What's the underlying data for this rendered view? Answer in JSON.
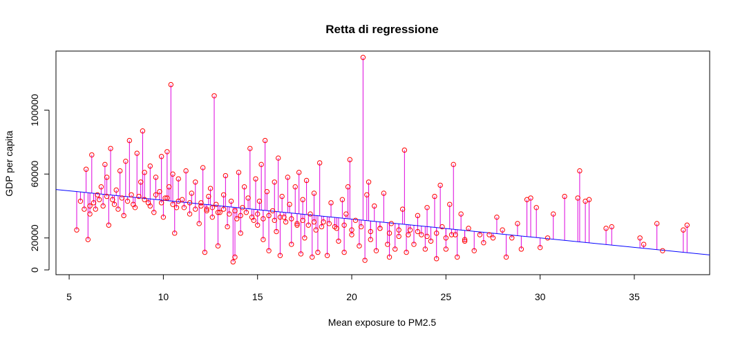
{
  "chart_data": {
    "type": "scatter",
    "title": "Retta di regressione",
    "xlabel": "Mean exposure to PM2.5",
    "ylabel": "GDP per capita",
    "xlim": [
      4.3,
      39.0
    ],
    "ylim": [
      -3000,
      137000
    ],
    "xticks": [
      5,
      10,
      15,
      20,
      25,
      30,
      35
    ],
    "yticks": [
      0,
      20000,
      60000,
      100000
    ],
    "grid": false,
    "regression_line": {
      "intercept": 55400,
      "slope": -1180
    },
    "point_color": "#ff0000",
    "segment_color": "#dd00dd",
    "line_color": "#0000ff",
    "points": [
      [
        5.4,
        25000
      ],
      [
        5.6,
        43000
      ],
      [
        5.8,
        38000
      ],
      [
        5.9,
        63000
      ],
      [
        6.0,
        19000
      ],
      [
        6.1,
        35000
      ],
      [
        6.2,
        72000
      ],
      [
        6.3,
        42000
      ],
      [
        6.5,
        47000
      ],
      [
        6.7,
        52000
      ],
      [
        6.9,
        66000
      ],
      [
        7.0,
        58000
      ],
      [
        7.1,
        28000
      ],
      [
        7.2,
        76000
      ],
      [
        7.3,
        44000
      ],
      [
        7.5,
        50000
      ],
      [
        7.7,
        62000
      ],
      [
        7.9,
        34000
      ],
      [
        8.0,
        68000
      ],
      [
        8.2,
        81000
      ],
      [
        8.3,
        47000
      ],
      [
        8.5,
        39000
      ],
      [
        8.6,
        73000
      ],
      [
        8.8,
        55000
      ],
      [
        8.9,
        87000
      ],
      [
        9.0,
        61000
      ],
      [
        9.2,
        42000
      ],
      [
        9.3,
        65000
      ],
      [
        9.5,
        36000
      ],
      [
        9.6,
        58000
      ],
      [
        9.8,
        49000
      ],
      [
        9.9,
        71000
      ],
      [
        10.0,
        33000
      ],
      [
        10.1,
        45000
      ],
      [
        10.2,
        74000
      ],
      [
        10.3,
        52000
      ],
      [
        10.4,
        116000
      ],
      [
        10.5,
        60000
      ],
      [
        10.6,
        23000
      ],
      [
        10.7,
        39000
      ],
      [
        10.8,
        57000
      ],
      [
        11.0,
        44000
      ],
      [
        11.2,
        62000
      ],
      [
        11.4,
        35000
      ],
      [
        11.5,
        48000
      ],
      [
        11.7,
        55000
      ],
      [
        11.9,
        29000
      ],
      [
        12.0,
        42000
      ],
      [
        12.1,
        64000
      ],
      [
        12.2,
        11000
      ],
      [
        12.3,
        38000
      ],
      [
        12.4,
        46000
      ],
      [
        12.5,
        51000
      ],
      [
        12.6,
        33000
      ],
      [
        12.7,
        109000
      ],
      [
        12.8,
        41000
      ],
      [
        12.9,
        15000
      ],
      [
        13.0,
        36000
      ],
      [
        13.2,
        47000
      ],
      [
        13.3,
        59000
      ],
      [
        13.4,
        27000
      ],
      [
        13.6,
        43000
      ],
      [
        13.7,
        5000
      ],
      [
        13.8,
        8000
      ],
      [
        13.9,
        32000
      ],
      [
        14.0,
        61000
      ],
      [
        14.1,
        23000
      ],
      [
        14.2,
        39000
      ],
      [
        14.3,
        52000
      ],
      [
        14.5,
        45000
      ],
      [
        14.6,
        76000
      ],
      [
        14.8,
        31000
      ],
      [
        14.9,
        57000
      ],
      [
        15.0,
        28000
      ],
      [
        15.1,
        43000
      ],
      [
        15.2,
        66000
      ],
      [
        15.3,
        19000
      ],
      [
        15.4,
        81000
      ],
      [
        15.5,
        49000
      ],
      [
        15.6,
        12000
      ],
      [
        15.8,
        37000
      ],
      [
        15.9,
        55000
      ],
      [
        16.0,
        24000
      ],
      [
        16.1,
        70000
      ],
      [
        16.2,
        9000
      ],
      [
        16.3,
        46000
      ],
      [
        16.4,
        33000
      ],
      [
        16.6,
        58000
      ],
      [
        16.7,
        41000
      ],
      [
        16.8,
        16000
      ],
      [
        17.0,
        52000
      ],
      [
        17.1,
        28000
      ],
      [
        17.2,
        61000
      ],
      [
        17.3,
        10000
      ],
      [
        17.4,
        44000
      ],
      [
        17.5,
        20000
      ],
      [
        17.6,
        56000
      ],
      [
        17.8,
        35000
      ],
      [
        17.9,
        8000
      ],
      [
        18.0,
        48000
      ],
      [
        18.1,
        25000
      ],
      [
        18.2,
        11000
      ],
      [
        18.3,
        67000
      ],
      [
        18.5,
        30000
      ],
      [
        18.7,
        9000
      ],
      [
        18.9,
        42000
      ],
      [
        19.1,
        27000
      ],
      [
        19.3,
        18000
      ],
      [
        19.5,
        44000
      ],
      [
        19.6,
        11000
      ],
      [
        19.7,
        35000
      ],
      [
        19.8,
        52000
      ],
      [
        19.9,
        69000
      ],
      [
        20.0,
        22000
      ],
      [
        20.2,
        31000
      ],
      [
        20.4,
        15000
      ],
      [
        20.6,
        133000
      ],
      [
        20.7,
        6000
      ],
      [
        20.8,
        47000
      ],
      [
        20.9,
        55000
      ],
      [
        21.0,
        19000
      ],
      [
        21.2,
        40000
      ],
      [
        21.3,
        12000
      ],
      [
        21.5,
        26000
      ],
      [
        21.7,
        48000
      ],
      [
        21.9,
        16000
      ],
      [
        22.0,
        8000
      ],
      [
        22.1,
        29000
      ],
      [
        22.3,
        13000
      ],
      [
        22.5,
        21000
      ],
      [
        22.7,
        38000
      ],
      [
        22.8,
        75000
      ],
      [
        22.9,
        11000
      ],
      [
        23.1,
        25000
      ],
      [
        23.3,
        16000
      ],
      [
        23.5,
        34000
      ],
      [
        23.7,
        22000
      ],
      [
        23.9,
        13000
      ],
      [
        24.0,
        39000
      ],
      [
        24.2,
        18000
      ],
      [
        24.4,
        46000
      ],
      [
        24.5,
        7000
      ],
      [
        24.7,
        53000
      ],
      [
        24.8,
        27000
      ],
      [
        25.0,
        13000
      ],
      [
        25.2,
        41000
      ],
      [
        25.3,
        22000
      ],
      [
        25.4,
        66000
      ],
      [
        25.6,
        8000
      ],
      [
        25.8,
        35000
      ],
      [
        26.0,
        18000
      ],
      [
        26.2,
        26000
      ],
      [
        26.5,
        12000
      ],
      [
        26.8,
        22000
      ],
      [
        27.0,
        17000
      ],
      [
        27.3,
        22000
      ],
      [
        27.7,
        33000
      ],
      [
        28.0,
        25000
      ],
      [
        28.2,
        8000
      ],
      [
        28.5,
        20000
      ],
      [
        28.8,
        29000
      ],
      [
        29.0,
        13000
      ],
      [
        29.3,
        44000
      ],
      [
        29.5,
        45000
      ],
      [
        29.8,
        39000
      ],
      [
        30.0,
        14000
      ],
      [
        30.4,
        20000
      ],
      [
        30.7,
        35000
      ],
      [
        31.3,
        46000
      ],
      [
        32.0,
        45000
      ],
      [
        32.1,
        62000
      ],
      [
        32.4,
        43000
      ],
      [
        32.6,
        44000
      ],
      [
        33.5,
        26000
      ],
      [
        33.8,
        27000
      ],
      [
        35.3,
        20000
      ],
      [
        35.5,
        16000
      ],
      [
        36.2,
        29000
      ],
      [
        36.5,
        12000
      ],
      [
        37.6,
        25000
      ],
      [
        37.8,
        28000
      ],
      [
        6.1,
        40000
      ],
      [
        6.4,
        38000
      ],
      [
        6.6,
        44000
      ],
      [
        6.8,
        40000
      ],
      [
        7.0,
        46000
      ],
      [
        7.4,
        41000
      ],
      [
        7.6,
        38000
      ],
      [
        7.8,
        45000
      ],
      [
        8.1,
        43000
      ],
      [
        8.4,
        41000
      ],
      [
        8.7,
        46000
      ],
      [
        9.0,
        44000
      ],
      [
        9.3,
        40000
      ],
      [
        9.6,
        47000
      ],
      [
        9.9,
        42000
      ],
      [
        10.2,
        45000
      ],
      [
        10.5,
        41000
      ],
      [
        10.8,
        43000
      ],
      [
        11.1,
        39000
      ],
      [
        11.4,
        42000
      ],
      [
        11.7,
        38000
      ],
      [
        12.0,
        40000
      ],
      [
        12.3,
        37000
      ],
      [
        12.6,
        39000
      ],
      [
        12.9,
        36000
      ],
      [
        13.2,
        38000
      ],
      [
        13.5,
        35000
      ],
      [
        13.8,
        37000
      ],
      [
        14.1,
        34000
      ],
      [
        14.4,
        36000
      ],
      [
        14.7,
        33000
      ],
      [
        15.0,
        35000
      ],
      [
        15.3,
        32000
      ],
      [
        15.6,
        34000
      ],
      [
        15.9,
        31000
      ],
      [
        16.2,
        33000
      ],
      [
        16.5,
        30000
      ],
      [
        16.8,
        32000
      ],
      [
        17.1,
        29000
      ],
      [
        17.4,
        31000
      ],
      [
        17.7,
        28000
      ],
      [
        18.0,
        30000
      ],
      [
        18.4,
        27000
      ],
      [
        18.8,
        29000
      ],
      [
        19.2,
        26000
      ],
      [
        19.6,
        28000
      ],
      [
        20.0,
        25000
      ],
      [
        20.5,
        27000
      ],
      [
        21.0,
        24000
      ],
      [
        21.5,
        26000
      ],
      [
        22.0,
        23000
      ],
      [
        22.5,
        25000
      ],
      [
        23.0,
        22000
      ],
      [
        23.5,
        24000
      ],
      [
        24.0,
        21000
      ],
      [
        24.5,
        23000
      ],
      [
        25.0,
        20000
      ],
      [
        25.5,
        22000
      ],
      [
        26.0,
        19000
      ],
      [
        27.5,
        20000
      ]
    ]
  }
}
